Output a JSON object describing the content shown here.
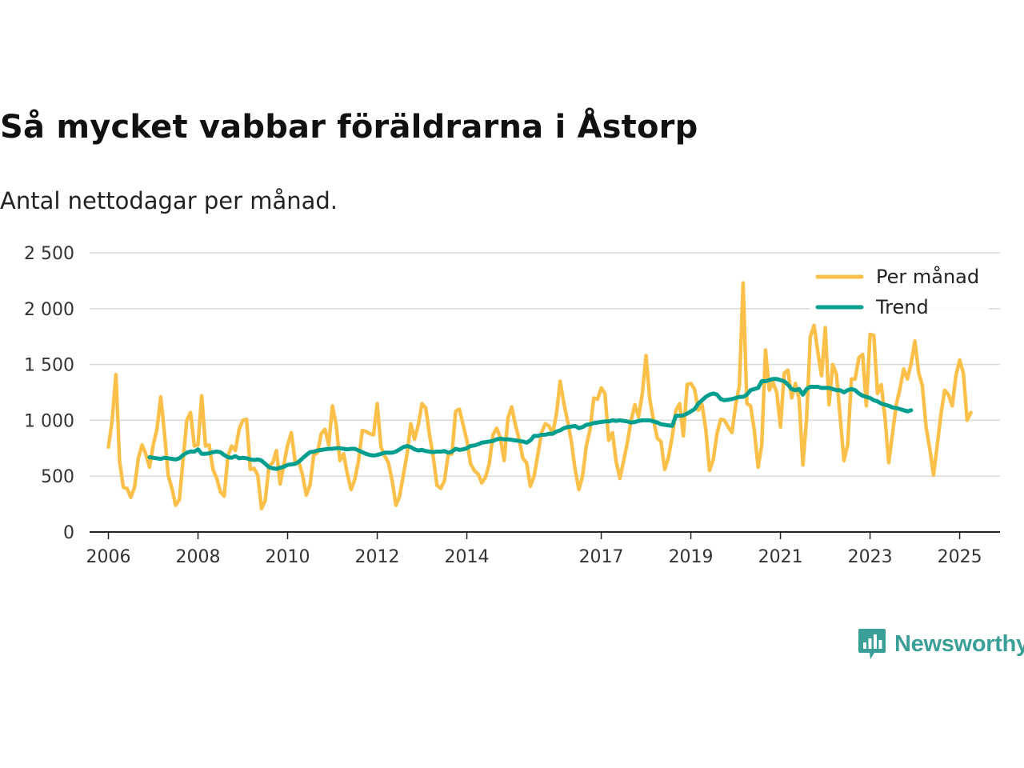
{
  "header": {
    "title": "Så mycket vabbar föräldrarna i Åstorp",
    "subtitle": "Antal nettodagar per månad."
  },
  "colors": {
    "monthly": "#fbc04a",
    "trend": "#009e8f",
    "grid": "#d9d9d9",
    "axis": "#222222",
    "brand": "#3a9f97"
  },
  "brand": {
    "name": "Newsworthy",
    "icon": "bar-chart-speech-bubble-icon"
  },
  "chart_data": {
    "type": "line",
    "title": "Så mycket vabbar föräldrarna i Åstorp",
    "subtitle": "Antal nettodagar per månad.",
    "xlabel": "",
    "ylabel": "",
    "ylim": [
      0,
      2500
    ],
    "xlim": [
      2005.58,
      2025.9
    ],
    "grid": "horizontal",
    "legend_position": "top-right",
    "y_ticks": [
      0,
      500,
      1000,
      1500,
      2000,
      2500
    ],
    "y_tick_labels": [
      "0",
      "500",
      "1 000",
      "1 500",
      "2 000",
      "2 500"
    ],
    "x_ticks": [
      2006,
      2008,
      2010,
      2012,
      2014,
      2017,
      2019,
      2021,
      2023,
      2025
    ],
    "x_tick_labels": [
      "2006",
      "2008",
      "2010",
      "2012",
      "2014",
      "2017",
      "2019",
      "2021",
      "2023",
      "2025"
    ],
    "series": [
      {
        "name": "Per månad",
        "start_year": 2006,
        "start_month": 1,
        "values": [
          760,
          1000,
          1410,
          630,
          400,
          390,
          310,
          400,
          660,
          780,
          700,
          580,
          780,
          920,
          1210,
          890,
          510,
          390,
          240,
          290,
          650,
          1000,
          1070,
          770,
          780,
          1220,
          770,
          780,
          560,
          480,
          360,
          320,
          680,
          770,
          730,
          920,
          1000,
          1010,
          560,
          570,
          510,
          210,
          280,
          590,
          620,
          730,
          430,
          610,
          780,
          890,
          630,
          630,
          510,
          330,
          420,
          690,
          710,
          880,
          920,
          780,
          1130,
          960,
          640,
          700,
          520,
          380,
          470,
          640,
          910,
          900,
          880,
          870,
          1150,
          760,
          680,
          620,
          460,
          240,
          320,
          510,
          700,
          970,
          830,
          960,
          1150,
          1110,
          870,
          670,
          420,
          390,
          460,
          690,
          700,
          1080,
          1100,
          960,
          820,
          610,
          550,
          520,
          440,
          490,
          610,
          870,
          930,
          840,
          640,
          1020,
          1120,
          960,
          830,
          660,
          620,
          410,
          500,
          690,
          890,
          970,
          950,
          880,
          1060,
          1350,
          1150,
          990,
          810,
          560,
          380,
          500,
          770,
          920,
          1200,
          1190,
          1290,
          1240,
          820,
          890,
          630,
          480,
          640,
          800,
          1000,
          1140,
          1030,
          1240,
          1580,
          1190,
          1000,
          840,
          810,
          560,
          670,
          850,
          1090,
          1150,
          860,
          1320,
          1330,
          1280,
          1090,
          1140,
          920,
          550,
          650,
          880,
          1010,
          1000,
          940,
          890,
          1140,
          1310,
          2230,
          1150,
          1130,
          910,
          580,
          780,
          1630,
          1270,
          1340,
          1250,
          940,
          1420,
          1450,
          1200,
          1330,
          1190,
          600,
          1010,
          1750,
          1850,
          1610,
          1400,
          1830,
          1140,
          1500,
          1410,
          1020,
          640,
          780,
          1370,
          1370,
          1560,
          1590,
          1130,
          1770,
          1760,
          1240,
          1320,
          1020,
          620,
          880,
          1140,
          1280,
          1460,
          1370,
          1510,
          1710,
          1430,
          1310,
          940,
          740,
          510,
          780,
          1060,
          1270,
          1230,
          1130,
          1400,
          1540,
          1420,
          1000,
          1070
        ]
      },
      {
        "name": "Trend",
        "start_year": 2006,
        "start_month": 12,
        "values": [
          670,
          665,
          660,
          655,
          665,
          660,
          655,
          650,
          660,
          690,
          710,
          720,
          720,
          740,
          700,
          700,
          705,
          715,
          720,
          715,
          690,
          670,
          665,
          680,
          660,
          665,
          660,
          650,
          645,
          650,
          640,
          610,
          580,
          570,
          565,
          575,
          585,
          600,
          605,
          610,
          630,
          660,
          690,
          715,
          720,
          730,
          735,
          740,
          745,
          745,
          750,
          750,
          745,
          740,
          745,
          745,
          730,
          715,
          700,
          690,
          685,
          690,
          700,
          710,
          710,
          710,
          720,
          740,
          760,
          770,
          760,
          740,
          730,
          735,
          725,
          720,
          715,
          720,
          720,
          725,
          710,
          720,
          745,
          735,
          740,
          750,
          770,
          775,
          785,
          800,
          805,
          810,
          815,
          830,
          835,
          830,
          830,
          825,
          820,
          815,
          810,
          800,
          820,
          860,
          860,
          870,
          870,
          880,
          880,
          900,
          910,
          930,
          940,
          945,
          950,
          930,
          940,
          960,
          965,
          975,
          980,
          985,
          990,
          990,
          1000,
          995,
          1000,
          995,
          990,
          980,
          985,
          995,
          1000,
          1000,
          1000,
          990,
          980,
          965,
          960,
          955,
          950,
          1040,
          1040,
          1045,
          1060,
          1080,
          1100,
          1150,
          1180,
          1210,
          1230,
          1240,
          1230,
          1190,
          1180,
          1185,
          1190,
          1200,
          1210,
          1210,
          1230,
          1270,
          1280,
          1290,
          1350,
          1350,
          1360,
          1370,
          1370,
          1360,
          1350,
          1320,
          1280,
          1270,
          1280,
          1230,
          1280,
          1300,
          1300,
          1300,
          1290,
          1290,
          1290,
          1280,
          1270,
          1270,
          1250,
          1270,
          1280,
          1270,
          1240,
          1220,
          1210,
          1200,
          1180,
          1170,
          1150,
          1140,
          1130,
          1115,
          1110,
          1100,
          1090,
          1080,
          1090
        ]
      }
    ]
  }
}
